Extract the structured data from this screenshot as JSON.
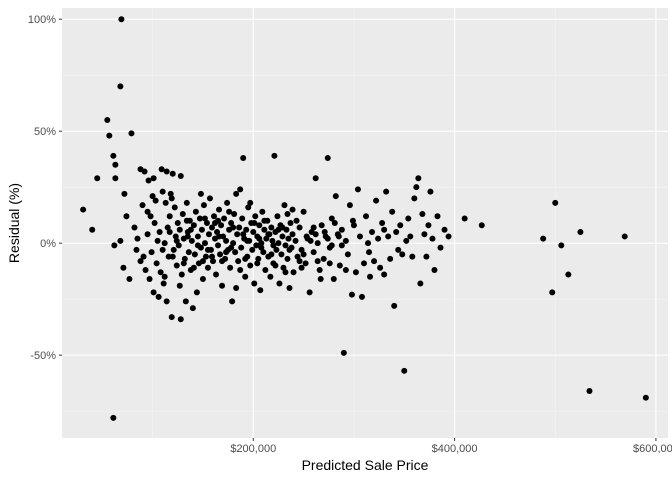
{
  "chart_data": {
    "type": "scatter",
    "title": "",
    "xlabel": "Predicted Sale Price",
    "ylabel": "Residual (%)",
    "xlim": [
      10000,
      612000
    ],
    "ylim": [
      -87,
      105
    ],
    "x_ticks": [
      {
        "value": 100000,
        "label": ""
      },
      {
        "value": 200000,
        "label": "$200,000"
      },
      {
        "value": 300000,
        "label": ""
      },
      {
        "value": 400000,
        "label": "$400,000"
      },
      {
        "value": 500000,
        "label": ""
      },
      {
        "value": 600000,
        "label": "$600,000"
      }
    ],
    "y_ticks": [
      {
        "value": -75,
        "label": ""
      },
      {
        "value": -50,
        "label": "-50%"
      },
      {
        "value": -25,
        "label": ""
      },
      {
        "value": 0,
        "label": "0%"
      },
      {
        "value": 25,
        "label": ""
      },
      {
        "value": 50,
        "label": "50%"
      },
      {
        "value": 75,
        "label": ""
      },
      {
        "value": 100,
        "label": "100%"
      }
    ],
    "grid": true,
    "legend": "none",
    "colors": {
      "panel": "#EBEBEB",
      "grid_major": "#FFFFFF",
      "grid_minor": "#F5F5F5",
      "point": "#000000"
    },
    "points": [
      [
        69000,
        100
      ],
      [
        68000,
        70
      ],
      [
        55000,
        55
      ],
      [
        57000,
        48
      ],
      [
        79000,
        49
      ],
      [
        61000,
        39
      ],
      [
        63000,
        35
      ],
      [
        45000,
        29
      ],
      [
        31000,
        15
      ],
      [
        40000,
        6
      ],
      [
        63000,
        29
      ],
      [
        62000,
        -1
      ],
      [
        68000,
        1
      ],
      [
        71000,
        -11
      ],
      [
        77000,
        -16
      ],
      [
        61000,
        -78
      ],
      [
        88000,
        33
      ],
      [
        92000,
        32
      ],
      [
        96000,
        28
      ],
      [
        101000,
        29
      ],
      [
        109000,
        33
      ],
      [
        114000,
        32
      ],
      [
        120000,
        31
      ],
      [
        128000,
        30
      ],
      [
        72000,
        22
      ],
      [
        74000,
        12
      ],
      [
        82000,
        7
      ],
      [
        85000,
        2
      ],
      [
        90000,
        17
      ],
      [
        95000,
        14
      ],
      [
        100000,
        21
      ],
      [
        103000,
        19
      ],
      [
        110000,
        23
      ],
      [
        113000,
        18
      ],
      [
        118000,
        22
      ],
      [
        84000,
        -3
      ],
      [
        88000,
        -8
      ],
      [
        93000,
        -12
      ],
      [
        97000,
        -16
      ],
      [
        101000,
        -22
      ],
      [
        106000,
        -24
      ],
      [
        111000,
        -18
      ],
      [
        114000,
        -26
      ],
      [
        119000,
        -33
      ],
      [
        128000,
        -34
      ],
      [
        133000,
        -26
      ],
      [
        140000,
        -29
      ],
      [
        144000,
        -22
      ],
      [
        91000,
        -6
      ],
      [
        95000,
        4
      ],
      [
        99000,
        -4
      ],
      [
        102000,
        9
      ],
      [
        104000,
        -9
      ],
      [
        107000,
        5
      ],
      [
        108000,
        -13
      ],
      [
        112000,
        0
      ],
      [
        115000,
        7
      ],
      [
        116000,
        -6
      ],
      [
        117000,
        12
      ],
      [
        121000,
        -3
      ],
      [
        122000,
        16
      ],
      [
        123000,
        3
      ],
      [
        124000,
        -10
      ],
      [
        125000,
        9
      ],
      [
        126000,
        -1
      ],
      [
        127000,
        6
      ],
      [
        129000,
        -14
      ],
      [
        130000,
        13
      ],
      [
        131000,
        2
      ],
      [
        132000,
        -7
      ],
      [
        134000,
        18
      ],
      [
        135000,
        5
      ],
      [
        136000,
        -4
      ],
      [
        137000,
        10
      ],
      [
        138000,
        -12
      ],
      [
        139000,
        1
      ],
      [
        141000,
        8
      ],
      [
        142000,
        -5
      ],
      [
        143000,
        14
      ],
      [
        145000,
        3
      ],
      [
        146000,
        -9
      ],
      [
        147000,
        11
      ],
      [
        148000,
        -2
      ],
      [
        149000,
        6
      ],
      [
        150000,
        -16
      ],
      [
        151000,
        17
      ],
      [
        152000,
        0
      ],
      [
        153000,
        -6
      ],
      [
        154000,
        9
      ],
      [
        155000,
        -11
      ],
      [
        156000,
        4
      ],
      [
        157000,
        20
      ],
      [
        158000,
        -3
      ],
      [
        159000,
        7
      ],
      [
        160000,
        -8
      ],
      [
        161000,
        12
      ],
      [
        162000,
        2
      ],
      [
        163000,
        -14
      ],
      [
        164000,
        5
      ],
      [
        165000,
        -1
      ],
      [
        166000,
        15
      ],
      [
        167000,
        -5
      ],
      [
        168000,
        8
      ],
      [
        169000,
        -19
      ],
      [
        170000,
        3
      ],
      [
        171000,
        11
      ],
      [
        172000,
        -7
      ],
      [
        173000,
        1
      ],
      [
        174000,
        18
      ],
      [
        175000,
        -3
      ],
      [
        176000,
        6
      ],
      [
        177000,
        -11
      ],
      [
        178000,
        9
      ],
      [
        179000,
        -26
      ],
      [
        180000,
        0
      ],
      [
        181000,
        13
      ],
      [
        182000,
        -4
      ],
      [
        183000,
        22
      ],
      [
        184000,
        4
      ],
      [
        185000,
        -8
      ],
      [
        186000,
        7
      ],
      [
        187000,
        24
      ],
      [
        188000,
        -2
      ],
      [
        189000,
        11
      ],
      [
        190000,
        38
      ],
      [
        191000,
        2
      ],
      [
        192000,
        -15
      ],
      [
        193000,
        6
      ],
      [
        194000,
        -6
      ],
      [
        195000,
        16
      ],
      [
        196000,
        1
      ],
      [
        197000,
        -10
      ],
      [
        198000,
        9
      ],
      [
        199000,
        -3
      ],
      [
        200000,
        5
      ],
      [
        201000,
        -18
      ],
      [
        202000,
        12
      ],
      [
        203000,
        -1
      ],
      [
        204000,
        3
      ],
      [
        205000,
        -7
      ],
      [
        206000,
        8
      ],
      [
        207000,
        -21
      ],
      [
        208000,
        0
      ],
      [
        209000,
        14
      ],
      [
        210000,
        -4
      ],
      [
        211000,
        6
      ],
      [
        212000,
        -12
      ],
      [
        213000,
        2
      ],
      [
        214000,
        10
      ],
      [
        215000,
        -6
      ],
      [
        216000,
        4
      ],
      [
        217000,
        -15
      ],
      [
        218000,
        7
      ],
      [
        219000,
        1
      ],
      [
        220000,
        -9
      ],
      [
        221000,
        39
      ],
      [
        222000,
        5
      ],
      [
        223000,
        -3
      ],
      [
        224000,
        12
      ],
      [
        225000,
        0
      ],
      [
        226000,
        -18
      ],
      [
        227000,
        8
      ],
      [
        228000,
        -5
      ],
      [
        229000,
        3
      ],
      [
        230000,
        -11
      ],
      [
        231000,
        17
      ],
      [
        232000,
        -1
      ],
      [
        233000,
        6
      ],
      [
        234000,
        -7
      ],
      [
        235000,
        2
      ],
      [
        236000,
        -20
      ],
      [
        237000,
        9
      ],
      [
        238000,
        -2
      ],
      [
        239000,
        4
      ],
      [
        240000,
        -13
      ],
      [
        242000,
        1
      ],
      [
        244000,
        -6
      ],
      [
        246000,
        7
      ],
      [
        248000,
        -3
      ],
      [
        250000,
        14
      ],
      [
        252000,
        -9
      ],
      [
        254000,
        2
      ],
      [
        256000,
        -22
      ],
      [
        258000,
        5
      ],
      [
        260000,
        -4
      ],
      [
        262000,
        29
      ],
      [
        264000,
        0
      ],
      [
        266000,
        -12
      ],
      [
        268000,
        8
      ],
      [
        270000,
        -7
      ],
      [
        272000,
        3
      ],
      [
        274000,
        38
      ],
      [
        276000,
        -2
      ],
      [
        278000,
        11
      ],
      [
        280000,
        -16
      ],
      [
        282000,
        21
      ],
      [
        284000,
        4
      ],
      [
        286000,
        -10
      ],
      [
        288000,
        6
      ],
      [
        290000,
        -49
      ],
      [
        292000,
        1
      ],
      [
        294000,
        -5
      ],
      [
        296000,
        17
      ],
      [
        298000,
        -23
      ],
      [
        300000,
        8
      ],
      [
        302000,
        -13
      ],
      [
        304000,
        24
      ],
      [
        306000,
        3
      ],
      [
        308000,
        -24
      ],
      [
        310000,
        -9
      ],
      [
        312000,
        12
      ],
      [
        314000,
        0
      ],
      [
        316000,
        -15
      ],
      [
        318000,
        5
      ],
      [
        320000,
        -8
      ],
      [
        322000,
        19
      ],
      [
        324000,
        2
      ],
      [
        326000,
        -11
      ],
      [
        328000,
        9
      ],
      [
        330000,
        -14
      ],
      [
        332000,
        23
      ],
      [
        334000,
        3
      ],
      [
        336000,
        -7
      ],
      [
        338000,
        14
      ],
      [
        340000,
        -28
      ],
      [
        342000,
        5
      ],
      [
        344000,
        -3
      ],
      [
        346000,
        8
      ],
      [
        348000,
        -5
      ],
      [
        350000,
        -57
      ],
      [
        352000,
        1
      ],
      [
        354000,
        11
      ],
      [
        356000,
        3
      ],
      [
        358000,
        -6
      ],
      [
        360000,
        20
      ],
      [
        362000,
        25
      ],
      [
        364000,
        29
      ],
      [
        366000,
        -18
      ],
      [
        368000,
        13
      ],
      [
        370000,
        4
      ],
      [
        372000,
        -6
      ],
      [
        374000,
        8
      ],
      [
        376000,
        23
      ],
      [
        378000,
        2
      ],
      [
        380000,
        -12
      ],
      [
        383000,
        12
      ],
      [
        386000,
        -2
      ],
      [
        390000,
        6
      ],
      [
        394000,
        3
      ],
      [
        410000,
        11
      ],
      [
        427000,
        8
      ],
      [
        488000,
        2
      ],
      [
        497000,
        -22
      ],
      [
        500000,
        18
      ],
      [
        506000,
        -1
      ],
      [
        513000,
        -14
      ],
      [
        525000,
        5
      ],
      [
        534000,
        -66
      ],
      [
        569000,
        3
      ],
      [
        590000,
        -69
      ],
      [
        98000,
        12
      ],
      [
        105000,
        1
      ],
      [
        112000,
        -15
      ],
      [
        119000,
        20
      ],
      [
        127000,
        -19
      ],
      [
        134000,
        10
      ],
      [
        141000,
        -11
      ],
      [
        148000,
        22
      ],
      [
        155000,
        -3
      ],
      [
        162000,
        9
      ],
      [
        169000,
        -8
      ],
      [
        176000,
        14
      ],
      [
        183000,
        -20
      ],
      [
        190000,
        4
      ],
      [
        197000,
        18
      ],
      [
        204000,
        -9
      ],
      [
        211000,
        10
      ],
      [
        218000,
        -5
      ],
      [
        225000,
        6
      ],
      [
        232000,
        -13
      ],
      [
        239000,
        15
      ],
      [
        246000,
        -8
      ],
      [
        253000,
        3
      ],
      [
        260000,
        7
      ],
      [
        267000,
        -16
      ],
      [
        274000,
        2
      ],
      [
        281000,
        9
      ],
      [
        288000,
        -1
      ],
      [
        110000,
        -3
      ],
      [
        117000,
        5
      ],
      [
        124000,
        1
      ],
      [
        131000,
        -9
      ],
      [
        138000,
        6
      ],
      [
        145000,
        -1
      ],
      [
        152000,
        11
      ],
      [
        159000,
        -6
      ],
      [
        166000,
        3
      ],
      [
        173000,
        -4
      ],
      [
        180000,
        7
      ],
      [
        187000,
        -12
      ],
      [
        194000,
        1
      ],
      [
        201000,
        9
      ],
      [
        208000,
        -2
      ],
      [
        215000,
        4
      ],
      [
        222000,
        -10
      ],
      [
        229000,
        7
      ],
      [
        236000,
        -3
      ],
      [
        243000,
        10
      ],
      [
        250000,
        -5
      ],
      [
        257000,
        1
      ],
      [
        264000,
        -8
      ],
      [
        271000,
        5
      ],
      [
        278000,
        -1
      ],
      [
        285000,
        3
      ],
      [
        292000,
        -12
      ],
      [
        299000,
        10
      ],
      [
        120000,
        -6
      ],
      [
        135000,
        3
      ],
      [
        150000,
        -8
      ],
      [
        165000,
        10
      ],
      [
        178000,
        -2
      ],
      [
        192000,
        -7
      ],
      [
        206000,
        2
      ],
      [
        220000,
        -1
      ],
      [
        234000,
        13
      ],
      [
        248000,
        -11
      ],
      [
        262000,
        4
      ],
      [
        276000,
        -9
      ],
      [
        315000,
        -4
      ],
      [
        330000,
        6
      ]
    ]
  }
}
